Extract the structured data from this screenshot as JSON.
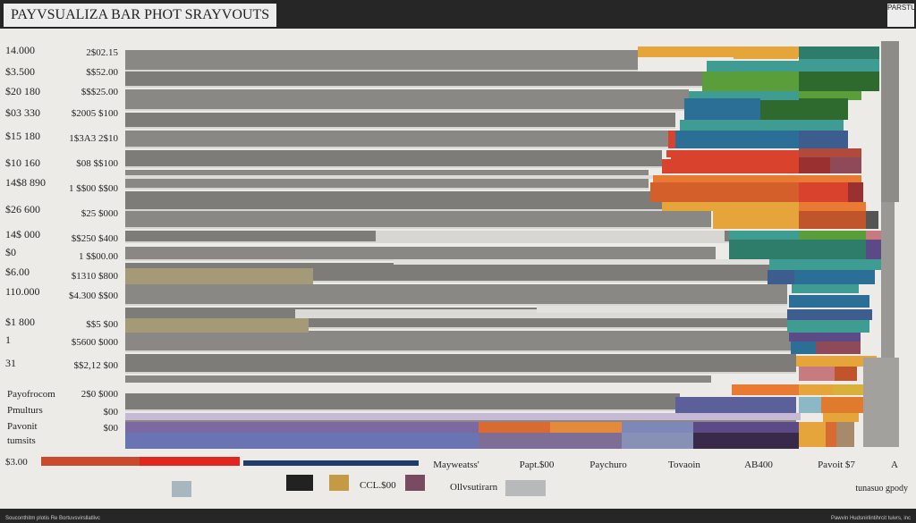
{
  "header": {
    "title": "PAYVSUALIZA BAR PHOT SRAYVOUTS",
    "corner_text": "PARSTUTS"
  },
  "chart_data": {
    "type": "bar",
    "orientation": "horizontal",
    "stacked": true,
    "row_labels_left": [
      "14.000",
      "$3.500",
      "$20 180",
      "$03 330",
      "$15 180",
      "$10 160",
      "14$8 890",
      "$26 600",
      "14$ 000",
      "$0",
      "$6.00",
      "110.000",
      "$1 800",
      "1",
      "31",
      "Payofrocom",
      "Pmulturs",
      "Pavonit",
      "tumsits",
      "$3.00"
    ],
    "row_labels_right": [
      "2$02.15",
      "$$52.00",
      "$$$25.00",
      "$2005 $100",
      "1$3A3 2$10",
      "$08 $$100",
      "1 $$00 $$00",
      "$25 $000",
      "$$250 $400",
      "1 $$00.00",
      "$1310 $800",
      "$4.300 $$00",
      "$$5 $00",
      "$5600 $000",
      "$$2,12 $00",
      "2$0 $000",
      "$00",
      "$00"
    ],
    "legend": [
      "Mayweatss'",
      "Papt.$00",
      "Paychuro",
      "Tovaoin",
      "AB400",
      "Pavoit $7",
      "A"
    ],
    "legend_bottom": [
      "CCL.$00",
      "Ollvsutirarn"
    ],
    "note": "tunasuo gpody",
    "series_colors": [
      "#2e7d6b",
      "#3f9c93",
      "#2b6f96",
      "#3c5d8e",
      "#5b4a86",
      "#d9432e",
      "#e87a33",
      "#e5a53b",
      "#5a9e3c",
      "#2e6a2d"
    ]
  },
  "footer": {
    "source": "Souconthitm plotis Re Bortuvsvirsllatlivc",
    "credit": "Pawvin Hudsnirlintihrcit tuivrs, inc"
  }
}
